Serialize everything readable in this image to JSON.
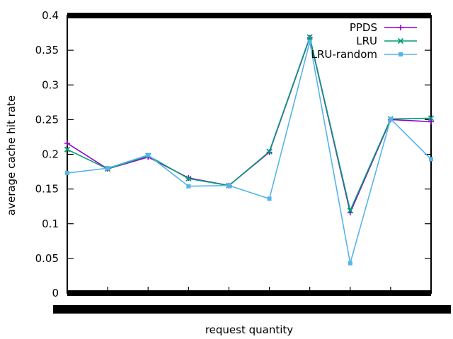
{
  "chart_data": {
    "type": "line",
    "title": "",
    "xlabel": "request quantity",
    "ylabel": "average cache hit rate",
    "ylim": [
      0,
      0.4
    ],
    "yticks": [
      0,
      0.05,
      0.1,
      0.15,
      0.2,
      0.25,
      0.3,
      0.35,
      0.4
    ],
    "ytick_labels": [
      "0",
      "0.05",
      "0.1",
      "0.15",
      "0.2",
      "0.25",
      "0.3",
      "0.35",
      "0.4"
    ],
    "x": [
      1,
      2,
      3,
      4,
      5,
      6,
      7,
      8,
      9,
      10
    ],
    "grid": false,
    "legend_position": "top-right",
    "series": [
      {
        "name": "PPDS",
        "color": "#9400d3",
        "marker": "plus",
        "values": [
          0.216,
          0.179,
          0.196,
          0.166,
          0.155,
          0.203,
          0.368,
          0.116,
          0.25,
          0.247
        ]
      },
      {
        "name": "LRU",
        "color": "#009e73",
        "marker": "cross",
        "values": [
          0.207,
          0.179,
          0.198,
          0.165,
          0.155,
          0.204,
          0.369,
          0.119,
          0.251,
          0.252
        ]
      },
      {
        "name": "LRU-random",
        "color": "#56b4e9",
        "marker": "square",
        "values": [
          0.173,
          0.18,
          0.199,
          0.154,
          0.155,
          0.136,
          0.362,
          0.043,
          0.251,
          0.193
        ]
      }
    ]
  }
}
